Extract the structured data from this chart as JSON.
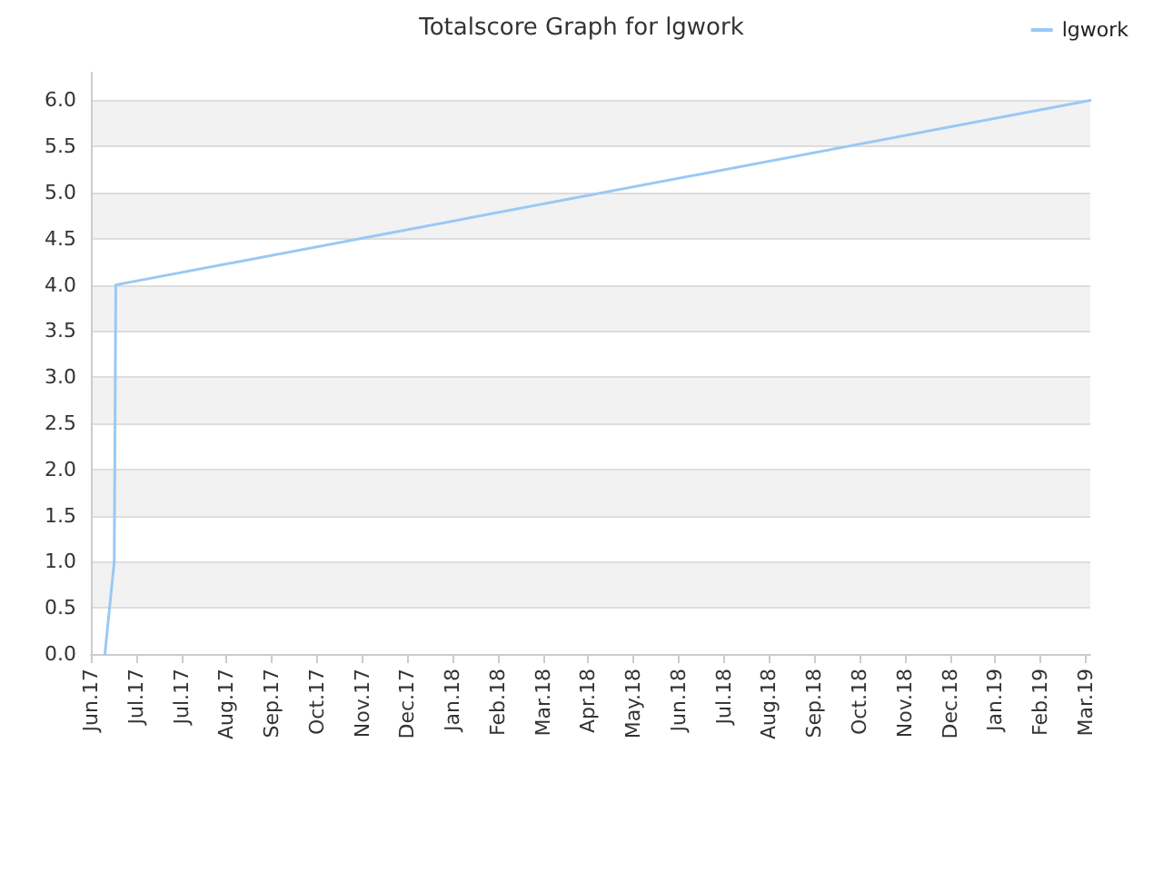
{
  "chart_data": {
    "type": "line",
    "title": "Totalscore Graph for lgwork",
    "series": [
      {
        "name": "lgwork",
        "color": "#99c9f5",
        "x": [
          "2017-06-11",
          "2017-06-17",
          "2017-06-18",
          "2019-03-05"
        ],
        "values": [
          0,
          1,
          4,
          6
        ]
      }
    ],
    "xlim": [
      "2017-06-02",
      "2019-03-05"
    ],
    "xticks": [
      {
        "value": "2017-06-02",
        "label": "Jun.17"
      },
      {
        "value": "2017-07-01",
        "label": "Jul.17"
      },
      {
        "value": "2017-07-30",
        "label": "Jul.17"
      },
      {
        "value": "2017-08-28",
        "label": "Aug.17"
      },
      {
        "value": "2017-09-26",
        "label": "Sep.17"
      },
      {
        "value": "2017-10-25",
        "label": "Oct.17"
      },
      {
        "value": "2017-11-23",
        "label": "Nov.17"
      },
      {
        "value": "2017-12-22",
        "label": "Dec.17"
      },
      {
        "value": "2018-01-20",
        "label": "Jan.18"
      },
      {
        "value": "2018-02-18",
        "label": "Feb.18"
      },
      {
        "value": "2018-03-19",
        "label": "Mar.18"
      },
      {
        "value": "2018-04-17",
        "label": "Apr.18"
      },
      {
        "value": "2018-05-16",
        "label": "May.18"
      },
      {
        "value": "2018-06-14",
        "label": "Jun.18"
      },
      {
        "value": "2018-07-13",
        "label": "Jul.18"
      },
      {
        "value": "2018-08-11",
        "label": "Aug.18"
      },
      {
        "value": "2018-09-09",
        "label": "Sep.18"
      },
      {
        "value": "2018-10-08",
        "label": "Oct.18"
      },
      {
        "value": "2018-11-06",
        "label": "Nov.18"
      },
      {
        "value": "2018-12-05",
        "label": "Dec.18"
      },
      {
        "value": "2019-01-03",
        "label": "Jan.19"
      },
      {
        "value": "2019-02-01",
        "label": "Feb.19"
      },
      {
        "value": "2019-03-02",
        "label": "Mar.19"
      }
    ],
    "ylim": [
      0,
      6.3
    ],
    "yticks": [
      {
        "value": 0,
        "label": "0.0"
      },
      0.5,
      {
        "value": 1,
        "label": "1.0"
      },
      1.5,
      {
        "value": 2,
        "label": "2.0"
      },
      2.5,
      {
        "value": 3,
        "label": "3.0"
      },
      3.5,
      {
        "value": 4,
        "label": "4.0"
      },
      4.5,
      {
        "value": 5,
        "label": "5.0"
      },
      5.5,
      {
        "value": 6,
        "label": "6.0"
      }
    ],
    "grid": "y",
    "legend": "top right",
    "marker": "none",
    "line_style": "solid"
  }
}
